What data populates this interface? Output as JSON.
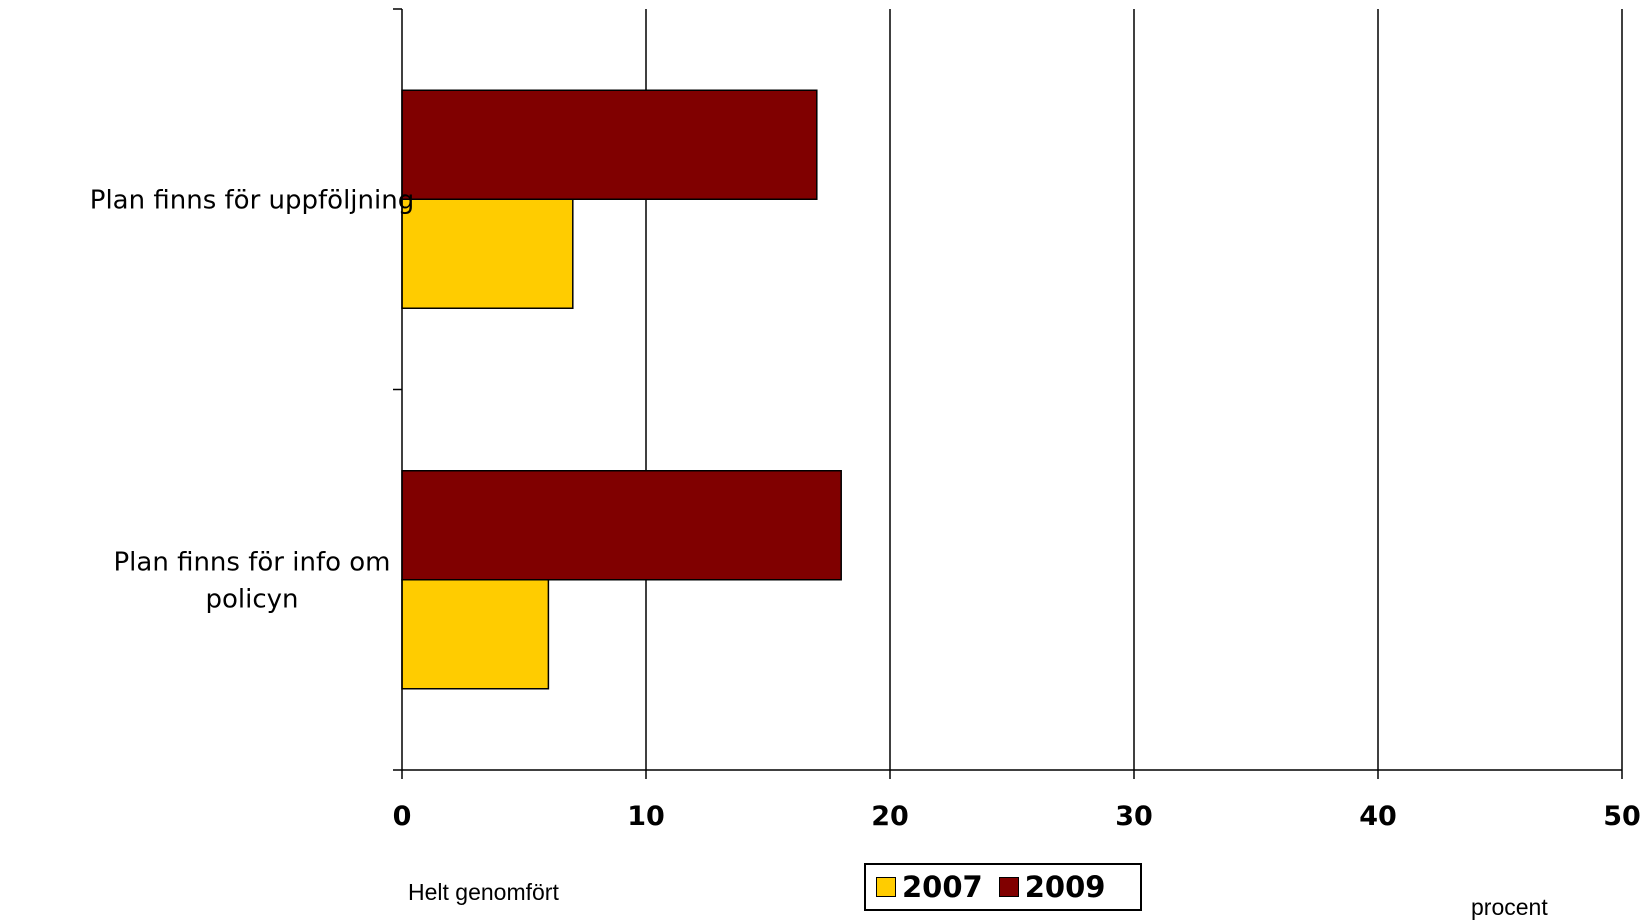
{
  "chart_data": {
    "type": "bar",
    "orientation": "horizontal",
    "categories": [
      "Plan finns för uppföljning",
      "Plan finns för info om policyn"
    ],
    "category_lines": [
      [
        "Plan finns för uppföljning"
      ],
      [
        "Plan finns för info om",
        "policyn"
      ]
    ],
    "series": [
      {
        "name": "2009",
        "values": [
          17,
          18
        ],
        "color": "#800000"
      },
      {
        "name": "2007",
        "values": [
          7,
          6
        ],
        "color": "#FFCC00"
      }
    ],
    "xlim": [
      0,
      50
    ],
    "xticks": [
      "0",
      "10",
      "20",
      "30",
      "40",
      "50"
    ],
    "xlabel": "procent",
    "grid": true,
    "legend_position": "bottom"
  },
  "notes": {
    "left_caption": "Helt genomfört",
    "unit_caption": "procent"
  },
  "legend": {
    "items": [
      {
        "label": "2007",
        "color": "#FFCC00"
      },
      {
        "label": "2009",
        "color": "#800000"
      }
    ]
  }
}
